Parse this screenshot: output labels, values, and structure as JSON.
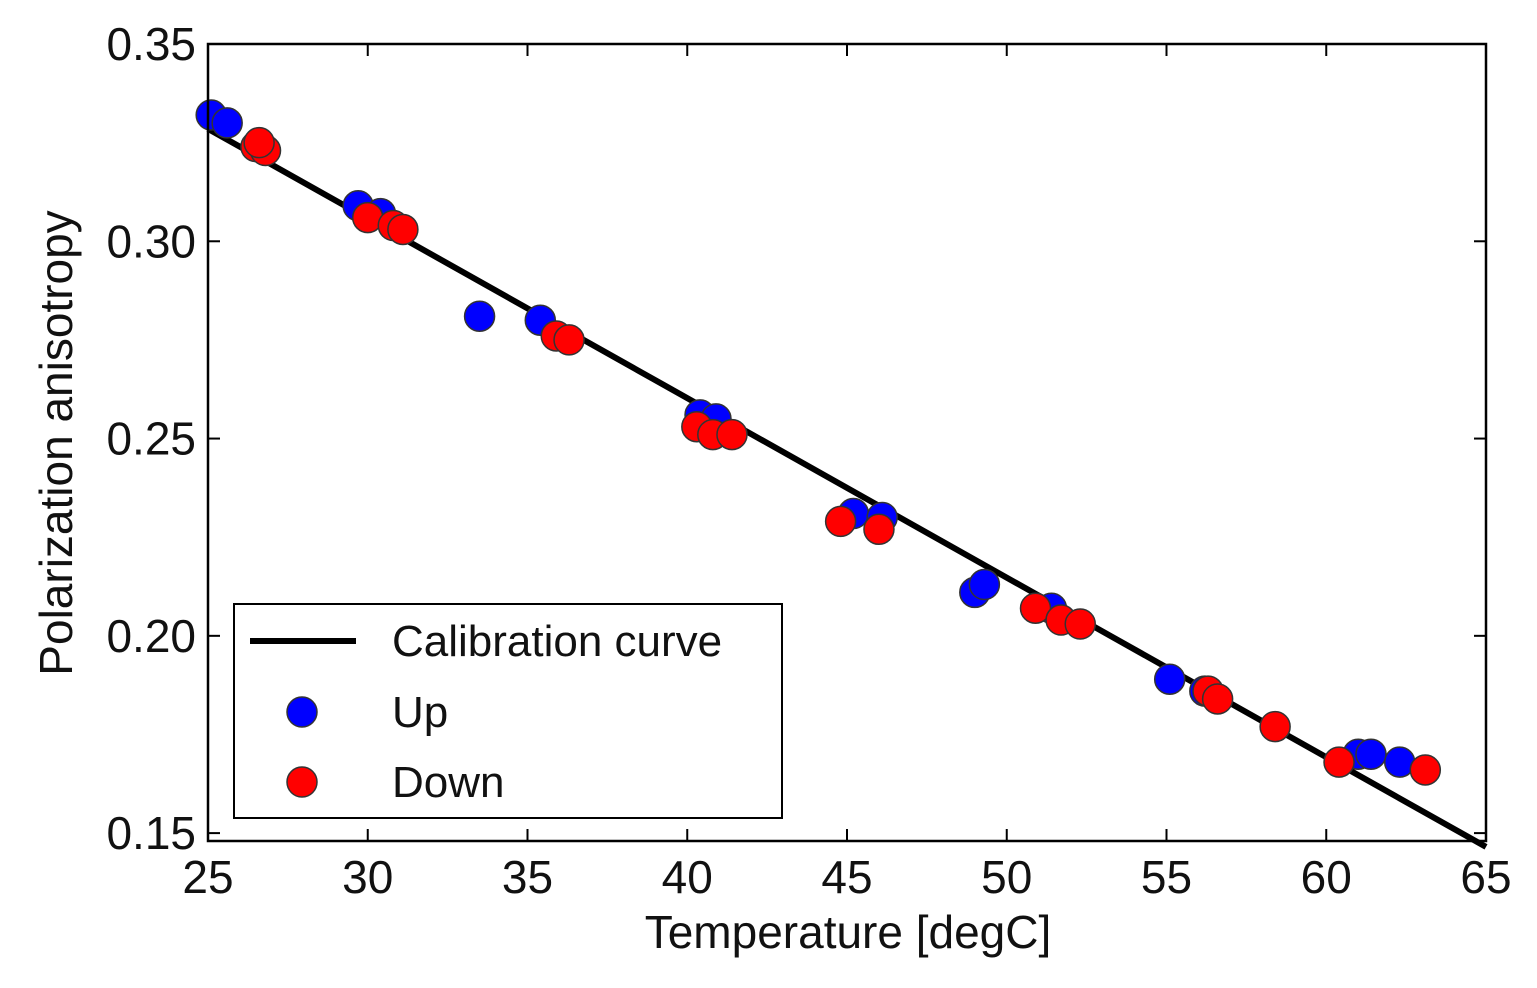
{
  "chart_data": {
    "type": "scatter",
    "title": "",
    "xlabel": "Temperature [degC]",
    "ylabel": "Polarization anisotropy",
    "xlim": [
      25,
      65
    ],
    "ylim": [
      0.148,
      0.35
    ],
    "xticks": [
      25,
      30,
      35,
      40,
      45,
      50,
      55,
      60,
      65
    ],
    "xtick_labels": [
      "25",
      "30",
      "35",
      "40",
      "45",
      "50",
      "55",
      "60",
      "65"
    ],
    "yticks": [
      0.15,
      0.2,
      0.25,
      0.3,
      0.35
    ],
    "ytick_labels": [
      "0.15",
      "0.20",
      "0.25",
      "0.30",
      "0.35"
    ],
    "grid": false,
    "legend_position": "bottom-left",
    "series": [
      {
        "name": "Calibration curve",
        "kind": "line",
        "color": "#000000",
        "x": [
          25,
          65
        ],
        "y": [
          0.3285,
          0.1465
        ]
      },
      {
        "name": "Up",
        "kind": "scatter",
        "color": "#0000ff",
        "x": [
          25.1,
          25.6,
          29.7,
          30.4,
          33.5,
          35.4,
          40.4,
          40.9,
          45.2,
          46.1,
          49.0,
          49.3,
          51.4,
          55.1,
          56.2,
          61.0,
          61.4,
          62.3
        ],
        "y": [
          0.332,
          0.33,
          0.309,
          0.307,
          0.281,
          0.28,
          0.256,
          0.255,
          0.231,
          0.23,
          0.211,
          0.213,
          0.207,
          0.189,
          0.186,
          0.17,
          0.17,
          0.168
        ]
      },
      {
        "name": "Down",
        "kind": "scatter",
        "color": "#ff0000",
        "x": [
          26.5,
          26.8,
          26.6,
          30.0,
          30.8,
          31.1,
          35.9,
          36.3,
          40.3,
          40.8,
          41.4,
          44.8,
          46.0,
          50.9,
          51.7,
          52.3,
          56.3,
          56.6,
          58.4,
          60.4,
          63.1
        ],
        "y": [
          0.324,
          0.323,
          0.325,
          0.306,
          0.304,
          0.303,
          0.276,
          0.275,
          0.253,
          0.251,
          0.251,
          0.229,
          0.227,
          0.207,
          0.204,
          0.203,
          0.186,
          0.184,
          0.177,
          0.168,
          0.166
        ]
      }
    ]
  }
}
